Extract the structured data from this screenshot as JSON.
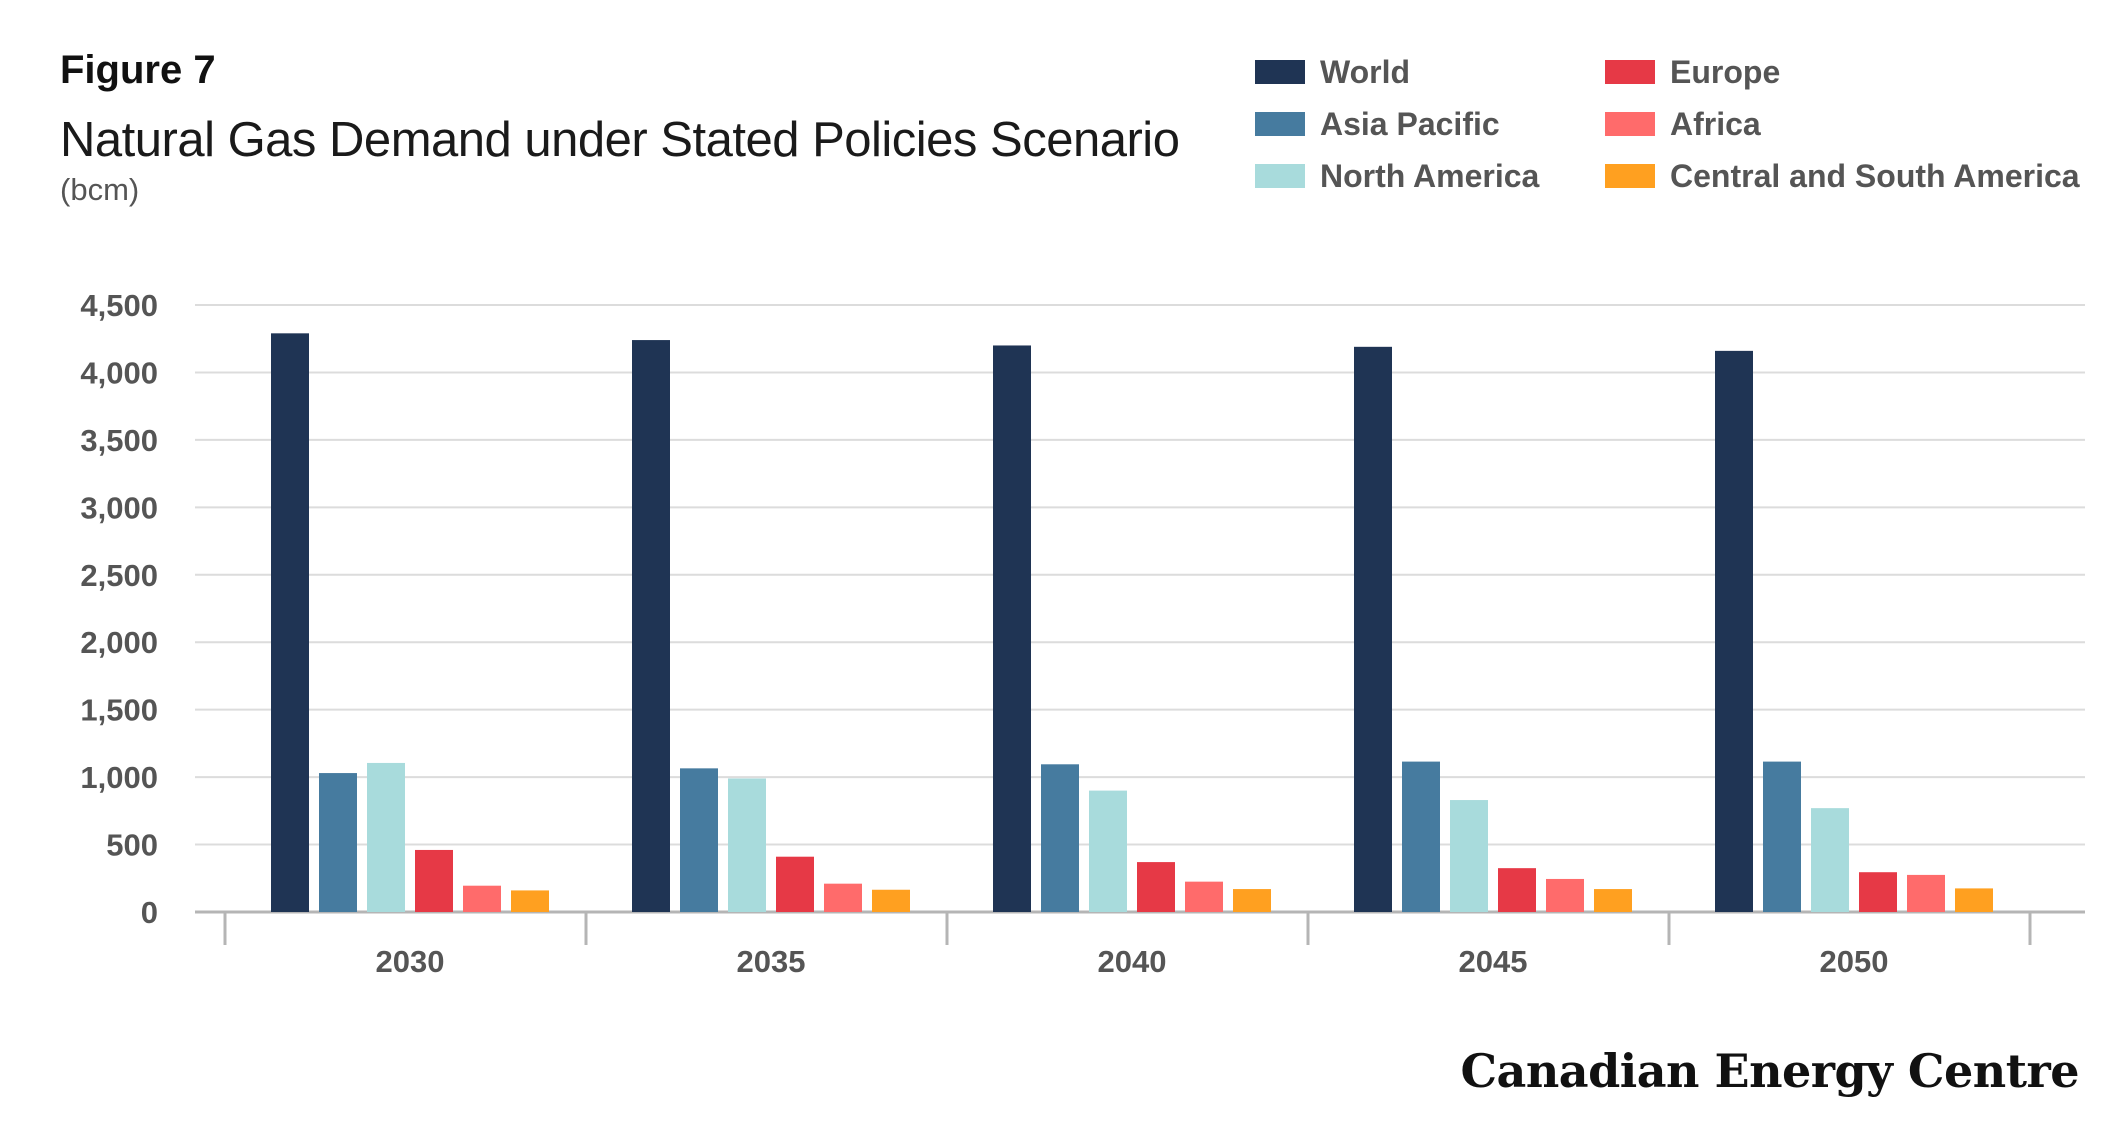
{
  "figure_label": "Figure 7",
  "brand": "Canadian Energy Centre",
  "chart_data": {
    "type": "bar",
    "title": "Natural Gas Demand under Stated Policies Scenario",
    "unit": "(bcm)",
    "xlabel": "",
    "ylabel": "",
    "ylim": [
      0,
      4500
    ],
    "yticks": [
      0,
      500,
      1000,
      1500,
      2000,
      2500,
      3000,
      3500,
      4000,
      4500
    ],
    "ytick_labels": [
      "0",
      "500",
      "1,000",
      "1,500",
      "2,000",
      "2,500",
      "3,000",
      "3,500",
      "4,000",
      "4,500"
    ],
    "categories": [
      "2030",
      "2035",
      "2040",
      "2045",
      "2050"
    ],
    "grid": true,
    "legend_position": "top-right",
    "series": [
      {
        "name": "World",
        "color": "#1f3454",
        "values": [
          4290,
          4240,
          4200,
          4190,
          4160
        ]
      },
      {
        "name": "Asia Pacific",
        "color": "#467b9f",
        "values": [
          1030,
          1065,
          1095,
          1115,
          1115
        ]
      },
      {
        "name": "North America",
        "color": "#a8dbdc",
        "values": [
          1105,
          990,
          900,
          830,
          770
        ]
      },
      {
        "name": "Europe",
        "color": "#e63946",
        "values": [
          460,
          410,
          370,
          325,
          295
        ]
      },
      {
        "name": "Africa",
        "color": "#ff6b6b",
        "values": [
          195,
          210,
          225,
          245,
          275
        ]
      },
      {
        "name": "Central and South America",
        "color": "#ffa020",
        "values": [
          160,
          165,
          170,
          170,
          175
        ]
      }
    ]
  }
}
